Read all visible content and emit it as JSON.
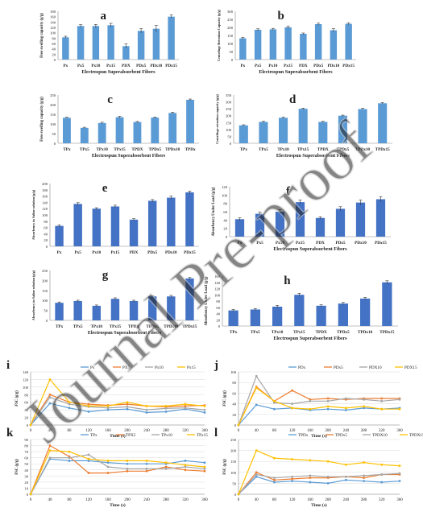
{
  "watermark": "Journal Pre-proof",
  "colors": {
    "bar": "#5b9bd5",
    "bar_dark": "#4472c4",
    "axis": "#888888",
    "grid": "#d9d9d9",
    "watermark": "#c8c8c8"
  },
  "chart_data": [
    {
      "id": "a",
      "type": "bar",
      "letter": "a",
      "xlabel": "Electrospun Superabsorbent Fibers",
      "ylabel": "Free swelling capacity (g/g)",
      "categories": [
        "Px",
        "Px5",
        "Px10",
        "Px15",
        "PDX",
        "PDx5",
        "PDx10",
        "PDx15"
      ],
      "values": [
        83,
        125,
        125,
        128,
        50,
        107,
        115,
        160
      ],
      "errors": [
        4,
        5,
        6,
        7,
        8,
        8,
        12,
        6
      ],
      "ylim": [
        0,
        180
      ],
      "yticks": [
        0,
        20,
        40,
        60,
        80,
        100,
        120,
        140,
        160,
        180
      ]
    },
    {
      "id": "b",
      "type": "bar",
      "letter": "b",
      "xlabel": "Electrospun Superabsorbent Fibers",
      "ylabel": "Centrifuge Retention Capacity (g/g)",
      "categories": [
        "Px",
        "Px5",
        "Px10",
        "Px15",
        "PDX",
        "PDx5",
        "PDx10",
        "PDx15"
      ],
      "values": [
        132,
        185,
        188,
        200,
        160,
        220,
        182,
        222
      ],
      "errors": [
        6,
        6,
        6,
        8,
        5,
        6,
        10,
        6
      ],
      "ylim": [
        0,
        300
      ],
      "yticks": [
        0,
        50,
        100,
        150,
        200,
        250,
        300
      ]
    },
    {
      "id": "c",
      "type": "bar",
      "letter": "c",
      "xlabel": "Electrospun Superabsorbent Fibers",
      "ylabel": "Free swelling capacity (g/g)",
      "categories": [
        "TPx",
        "TPx5",
        "TPx10",
        "TPx15",
        "TPDX",
        "TPDx5",
        "TPDx10",
        "TPDx"
      ],
      "values": [
        132,
        80,
        105,
        135,
        110,
        133,
        157,
        225
      ],
      "errors": [
        3,
        3,
        4,
        5,
        3,
        3,
        4,
        4
      ],
      "ylim": [
        0,
        250
      ],
      "yticks": [
        0,
        50,
        100,
        150,
        200,
        250
      ]
    },
    {
      "id": "d",
      "type": "bar",
      "letter": "d",
      "xlabel": "Electrospun Superabsorbent Fibers",
      "ylabel": "Centrifuge retention capacity (g/g)",
      "categories": [
        "TPx",
        "TPx5",
        "TPx10",
        "TPx15",
        "TPDX",
        "TPDx5",
        "TPDx10",
        "TPDx15"
      ],
      "values": [
        130,
        155,
        185,
        250,
        155,
        200,
        248,
        290
      ],
      "errors": [
        4,
        4,
        4,
        5,
        4,
        4,
        5,
        5
      ],
      "ylim": [
        0,
        350
      ],
      "yticks": [
        0,
        50,
        100,
        150,
        200,
        250,
        300,
        350
      ]
    },
    {
      "id": "e",
      "type": "bar",
      "letter": "e",
      "xlabel": "",
      "ylabel": "Absorbency in Saline solution (g/g)",
      "categories": [
        "Px",
        "Px5",
        "Px10",
        "Px15",
        "PDX",
        "PDx5",
        "PDx10",
        "PDx15"
      ],
      "values": [
        65,
        135,
        120,
        127,
        85,
        145,
        155,
        172
      ],
      "errors": [
        3,
        4,
        3,
        4,
        3,
        4,
        5,
        4
      ],
      "ylim": [
        0,
        200
      ],
      "yticks": [
        0,
        20,
        40,
        60,
        80,
        100,
        120,
        140,
        160,
        180,
        200
      ]
    },
    {
      "id": "f",
      "type": "bar",
      "letter": "f",
      "xlabel": "Electrospun Superabsorbent Fibers",
      "ylabel": "Absorbency Under Load (g/g)",
      "categories": [
        "Px",
        "Px5",
        "Px10",
        "Px15",
        "PDX",
        "PDx5",
        "PDx10",
        "PDx15"
      ],
      "values": [
        42,
        55,
        60,
        83,
        45,
        67,
        82,
        90
      ],
      "errors": [
        3,
        4,
        5,
        5,
        3,
        5,
        6,
        6
      ],
      "ylim": [
        0,
        120
      ],
      "yticks": [
        0,
        20,
        40,
        60,
        80,
        100,
        120
      ]
    },
    {
      "id": "g",
      "type": "bar",
      "letter": "g",
      "xlabel": "Electrospun Superabsorbent Fibers",
      "ylabel": "Absorbency in Saline solution (g/g)",
      "categories": [
        "TPx",
        "TPx5",
        "TPx10",
        "TPx15",
        "TPDX",
        "TPDx5",
        "TPDx10",
        "TPDx15"
      ],
      "values": [
        88,
        97,
        73,
        108,
        97,
        120,
        120,
        210
      ],
      "errors": [
        4,
        4,
        4,
        5,
        4,
        4,
        5,
        5
      ],
      "ylim": [
        0,
        250
      ],
      "yticks": [
        0,
        50,
        100,
        150,
        200,
        250
      ]
    },
    {
      "id": "h",
      "type": "bar",
      "letter": "h",
      "xlabel": "Electrospun Superabsorbent Fibers",
      "ylabel": "Absorbency Under Load (g/g)",
      "categories": [
        "TPx",
        "TPx5",
        "TPx10",
        "TPx15",
        "TPDX",
        "TPDx5",
        "TPDx10",
        "TPDx15"
      ],
      "values": [
        50,
        53,
        62,
        100,
        65,
        72,
        88,
        140
      ],
      "errors": [
        3,
        3,
        4,
        5,
        3,
        4,
        4,
        5
      ],
      "ylim": [
        0,
        160
      ],
      "yticks": [
        0,
        20,
        40,
        60,
        80,
        100,
        120,
        140,
        160
      ]
    },
    {
      "id": "i",
      "type": "line",
      "letter": "i",
      "xlabel": "Time (s)",
      "ylabel": "FSC (g/g)",
      "x": [
        0,
        40,
        80,
        120,
        160,
        200,
        240,
        280,
        320,
        360
      ],
      "ylim": [
        0,
        140
      ],
      "yticks": [
        0,
        20,
        40,
        60,
        80,
        100,
        120,
        140
      ],
      "series": [
        {
          "name": "Px",
          "color": "#5b9bd5",
          "values": [
            0,
            57,
            45,
            35,
            40,
            42,
            33,
            35,
            42,
            33
          ]
        },
        {
          "name": "PX5",
          "color": "#ed7d31",
          "values": [
            0,
            80,
            60,
            55,
            52,
            55,
            50,
            48,
            50,
            52
          ]
        },
        {
          "name": "Px10",
          "color": "#a5a5a5",
          "values": [
            0,
            73,
            55,
            48,
            45,
            48,
            40,
            44,
            45,
            40
          ]
        },
        {
          "name": "Px15",
          "color": "#ffc000",
          "values": [
            0,
            120,
            60,
            50,
            50,
            60,
            50,
            50,
            55,
            50
          ]
        }
      ]
    },
    {
      "id": "j",
      "type": "line",
      "letter": "j",
      "xlabel": "Time (s)",
      "ylabel": "FSC (g/g)",
      "x": [
        0,
        40,
        80,
        120,
        160,
        200,
        240,
        280,
        320,
        360
      ],
      "ylim": [
        0,
        100
      ],
      "yticks": [
        0,
        20,
        40,
        60,
        80,
        100
      ],
      "series": [
        {
          "name": "PDx",
          "color": "#5b9bd5",
          "values": [
            0,
            38,
            30,
            32,
            28,
            30,
            28,
            32,
            30,
            32
          ]
        },
        {
          "name": "PDx5",
          "color": "#ed7d31",
          "values": [
            0,
            72,
            45,
            65,
            48,
            50,
            48,
            50,
            50,
            50
          ]
        },
        {
          "name": "PDX10",
          "color": "#a5a5a5",
          "values": [
            0,
            92,
            42,
            40,
            45,
            45,
            50,
            48,
            45,
            48
          ]
        },
        {
          "name": "PDX15",
          "color": "#ffc000",
          "values": [
            0,
            70,
            45,
            32,
            30,
            35,
            32,
            35,
            30,
            30
          ]
        }
      ]
    },
    {
      "id": "k",
      "type": "line",
      "letter": "k",
      "xlabel": "Time (s)",
      "ylabel": "FSC (g/g)",
      "x": [
        0,
        40,
        80,
        120,
        160,
        200,
        240,
        280,
        320,
        360
      ],
      "ylim": [
        0,
        90
      ],
      "yticks": [
        0,
        10,
        20,
        30,
        40,
        50,
        60,
        70,
        80,
        90
      ],
      "series": [
        {
          "name": "TPx",
          "color": "#5b9bd5",
          "values": [
            0,
            58,
            55,
            55,
            52,
            50,
            50,
            50,
            55,
            52
          ]
        },
        {
          "name": "TPX5",
          "color": "#ed7d31",
          "values": [
            0,
            80,
            62,
            35,
            35,
            38,
            38,
            45,
            40,
            38
          ]
        },
        {
          "name": "TPx10",
          "color": "#a5a5a5",
          "values": [
            0,
            60,
            60,
            65,
            45,
            42,
            42,
            42,
            45,
            42
          ]
        },
        {
          "name": "TPx15",
          "color": "#ffc000",
          "values": [
            0,
            72,
            70,
            58,
            55,
            55,
            55,
            52,
            48,
            45
          ]
        }
      ]
    },
    {
      "id": "l",
      "type": "line",
      "letter": "l",
      "xlabel": "Time (s)",
      "ylabel": "FSC (g/g)",
      "x": [
        0,
        40,
        80,
        120,
        160,
        200,
        240,
        280,
        320,
        360
      ],
      "ylim": [
        0,
        250
      ],
      "yticks": [
        0,
        50,
        100,
        150,
        200,
        250
      ],
      "series": [
        {
          "name": "TPDx",
          "color": "#5b9bd5",
          "values": [
            0,
            80,
            55,
            60,
            55,
            50,
            65,
            60,
            55,
            60
          ]
        },
        {
          "name": "TPDx5",
          "color": "#ed7d31",
          "values": [
            0,
            100,
            65,
            70,
            75,
            75,
            80,
            75,
            90,
            90
          ]
        },
        {
          "name": "TPDX10",
          "color": "#a5a5a5",
          "values": [
            0,
            90,
            75,
            80,
            85,
            80,
            80,
            85,
            90,
            95
          ]
        },
        {
          "name": "TPDX15",
          "color": "#ffc000",
          "values": [
            0,
            200,
            165,
            160,
            155,
            150,
            135,
            145,
            135,
            130
          ]
        }
      ]
    }
  ]
}
